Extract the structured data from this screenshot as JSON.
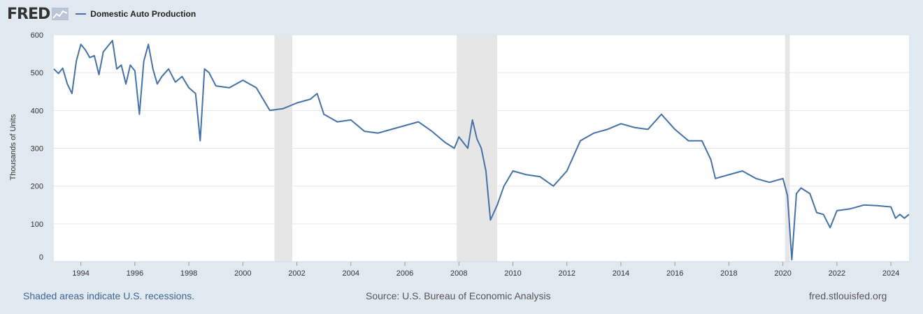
{
  "header": {
    "logo_text": "FRED",
    "logo_icon": "fred-graph-icon"
  },
  "colors": {
    "background": "#e1e9f0",
    "plot_background": "#ffffff",
    "series": "#4572a7",
    "recession": "#e6e6e6",
    "grid": "#e6e6e6"
  },
  "footer": {
    "note": "Shaded areas indicate U.S. recessions.",
    "source": "Source: U.S. Bureau of Economic Analysis",
    "site": "fred.stlouisfed.org"
  },
  "chart_data": {
    "type": "line",
    "title": "",
    "xlabel": "",
    "ylabel": "Thousands of Units",
    "xlim": [
      1993.0,
      2024.67
    ],
    "ylim": [
      0,
      600
    ],
    "yticks": [
      0,
      100,
      200,
      300,
      400,
      500,
      600
    ],
    "xticks": [
      1994,
      1996,
      1998,
      2000,
      2002,
      2004,
      2006,
      2008,
      2010,
      2012,
      2014,
      2016,
      2018,
      2020,
      2022,
      2024
    ],
    "grid": true,
    "legend_position": "top-left",
    "recessions": [
      [
        2001.17,
        2001.83
      ],
      [
        2007.92,
        2009.42
      ],
      [
        2020.08,
        2020.25
      ]
    ],
    "series": [
      {
        "name": "Domestic Auto Production",
        "x": [
          1993.0,
          1993.17,
          1993.33,
          1993.5,
          1993.67,
          1993.83,
          1994.0,
          1994.17,
          1994.33,
          1994.5,
          1994.67,
          1994.83,
          1995.0,
          1995.17,
          1995.33,
          1995.5,
          1995.67,
          1995.83,
          1996.0,
          1996.17,
          1996.33,
          1996.5,
          1996.67,
          1996.83,
          1997.0,
          1997.25,
          1997.5,
          1997.75,
          1998.0,
          1998.25,
          1998.42,
          1998.58,
          1998.75,
          1999.0,
          1999.5,
          2000.0,
          2000.5,
          2001.0,
          2001.5,
          2002.0,
          2002.5,
          2002.75,
          2003.0,
          2003.5,
          2004.0,
          2004.5,
          2005.0,
          2005.5,
          2006.0,
          2006.5,
          2007.0,
          2007.5,
          2007.83,
          2008.0,
          2008.33,
          2008.5,
          2008.67,
          2008.83,
          2009.0,
          2009.17,
          2009.42,
          2009.67,
          2010.0,
          2010.5,
          2011.0,
          2011.5,
          2012.0,
          2012.5,
          2013.0,
          2013.5,
          2014.0,
          2014.5,
          2015.0,
          2015.5,
          2016.0,
          2016.5,
          2017.0,
          2017.33,
          2017.5,
          2018.0,
          2018.5,
          2019.0,
          2019.5,
          2020.0,
          2020.17,
          2020.33,
          2020.5,
          2020.67,
          2021.0,
          2021.25,
          2021.5,
          2021.75,
          2022.0,
          2022.5,
          2023.0,
          2023.5,
          2024.0,
          2024.17,
          2024.33,
          2024.5,
          2024.67
        ],
        "values": [
          510,
          498,
          512,
          470,
          445,
          530,
          575,
          560,
          540,
          545,
          495,
          555,
          570,
          585,
          510,
          520,
          470,
          520,
          505,
          390,
          530,
          575,
          510,
          470,
          490,
          510,
          475,
          490,
          460,
          445,
          320,
          510,
          500,
          465,
          460,
          480,
          460,
          400,
          405,
          420,
          430,
          445,
          390,
          370,
          375,
          345,
          340,
          350,
          360,
          370,
          345,
          315,
          300,
          330,
          300,
          375,
          325,
          300,
          240,
          110,
          150,
          200,
          240,
          230,
          225,
          200,
          240,
          320,
          340,
          350,
          365,
          355,
          350,
          390,
          350,
          320,
          320,
          270,
          220,
          230,
          240,
          220,
          210,
          220,
          175,
          5,
          180,
          195,
          180,
          130,
          125,
          90,
          135,
          140,
          150,
          148,
          145,
          115,
          125,
          115,
          125
        ]
      }
    ]
  }
}
